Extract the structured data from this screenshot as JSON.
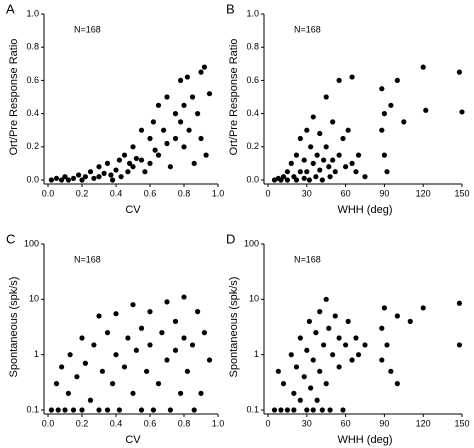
{
  "chart_data": [
    {
      "type": "scatter",
      "panel": "A",
      "annotation": "N=168",
      "xlabel": "CV",
      "ylabel": "Ort/Pre Response Ratio",
      "color": "#000000",
      "log_y": false,
      "xlim": [
        0,
        1
      ],
      "xticks": [
        {
          "value": 0,
          "label": "0.0"
        },
        0.2,
        0.4,
        0.6,
        0.8,
        {
          "value": 1,
          "label": "1.0"
        }
      ],
      "ylim": [
        0,
        1
      ],
      "yticks": [
        {
          "value": 0,
          "label": "0.0"
        },
        0.2,
        0.4,
        0.6,
        0.8,
        {
          "value": 1,
          "label": "1.0"
        }
      ],
      "x": [
        0.02,
        0.05,
        0.08,
        0.1,
        0.12,
        0.15,
        0.18,
        0.2,
        0.22,
        0.25,
        0.27,
        0.3,
        0.3,
        0.33,
        0.35,
        0.37,
        0.38,
        0.4,
        0.42,
        0.43,
        0.45,
        0.47,
        0.48,
        0.5,
        0.5,
        0.52,
        0.55,
        0.55,
        0.57,
        0.6,
        0.6,
        0.62,
        0.63,
        0.65,
        0.65,
        0.68,
        0.7,
        0.7,
        0.72,
        0.75,
        0.75,
        0.78,
        0.78,
        0.8,
        0.8,
        0.82,
        0.83,
        0.85,
        0.86,
        0.88,
        0.9,
        0.9,
        0.92,
        0.93,
        0.95
      ],
      "values": [
        0,
        0.01,
        0,
        0.02,
        0,
        0.01,
        0.03,
        0,
        0.02,
        0.05,
        0.01,
        0.08,
        0.02,
        0.04,
        0.1,
        0.03,
        0,
        0.06,
        0.12,
        0.02,
        0.15,
        0.05,
        0.1,
        0.2,
        0.08,
        0.13,
        0.3,
        0.12,
        0.05,
        0.25,
        0.1,
        0.35,
        0.18,
        0.45,
        0.15,
        0.3,
        0.5,
        0.22,
        0.08,
        0.4,
        0.25,
        0.6,
        0.35,
        0.45,
        0.2,
        0.62,
        0.3,
        0.5,
        0.1,
        0.4,
        0.65,
        0.25,
        0.68,
        0.15,
        0.52
      ]
    },
    {
      "type": "scatter",
      "panel": "B",
      "annotation": "N=168",
      "xlabel": "WHH (deg)",
      "ylabel": "Ort/Pre Response Ratio",
      "color": "#000000",
      "log_y": false,
      "xlim": [
        0,
        150
      ],
      "xticks": [
        0,
        30,
        60,
        90,
        120,
        150
      ],
      "ylim": [
        0,
        1
      ],
      "yticks": [
        {
          "value": 0,
          "label": "0.0"
        },
        0.2,
        0.4,
        0.6,
        0.8,
        {
          "value": 1,
          "label": "1.0"
        }
      ],
      "x": [
        5,
        8,
        10,
        12,
        15,
        15,
        18,
        20,
        22,
        22,
        25,
        25,
        28,
        28,
        30,
        30,
        32,
        33,
        35,
        35,
        37,
        38,
        40,
        40,
        42,
        43,
        45,
        45,
        47,
        48,
        50,
        50,
        52,
        55,
        55,
        58,
        60,
        62,
        65,
        65,
        68,
        70,
        75,
        88,
        88,
        90,
        90,
        92,
        95,
        100,
        105,
        120,
        122,
        148,
        150
      ],
      "values": [
        0,
        0.01,
        0,
        0.02,
        0.05,
        0,
        0.1,
        0.02,
        0,
        0.15,
        0.05,
        0.25,
        0.01,
        0.12,
        0.3,
        0.05,
        0,
        0.2,
        0.1,
        0.38,
        0.02,
        0.15,
        0.28,
        0.06,
        0,
        0.12,
        0.5,
        0.2,
        0.08,
        0.02,
        0.35,
        0.12,
        0.05,
        0.6,
        0.15,
        0.25,
        0.08,
        0.3,
        0.62,
        0.1,
        0.05,
        0.15,
        0.02,
        0.55,
        0.3,
        0.15,
        0.4,
        0.05,
        0.45,
        0.6,
        0.35,
        0.68,
        0.42,
        0.65,
        0.41
      ]
    },
    {
      "type": "scatter",
      "panel": "C",
      "annotation": "N=168",
      "xlabel": "CV",
      "ylabel": "Spontaneous (spk/s)",
      "color": "#000000",
      "log_y": true,
      "xlim": [
        0,
        1
      ],
      "xticks": [
        {
          "value": 0,
          "label": "0.0"
        },
        0.2,
        0.4,
        0.6,
        0.8,
        {
          "value": 1,
          "label": "1.0"
        }
      ],
      "ylim": [
        0.1,
        100
      ],
      "yticks": [
        0.1,
        1,
        10,
        100
      ],
      "x": [
        0.02,
        0.05,
        0.06,
        0.08,
        0.1,
        0.12,
        0.13,
        0.15,
        0.17,
        0.2,
        0.2,
        0.22,
        0.25,
        0.27,
        0.3,
        0.3,
        0.32,
        0.35,
        0.35,
        0.38,
        0.4,
        0.4,
        0.42,
        0.45,
        0.47,
        0.5,
        0.5,
        0.52,
        0.55,
        0.55,
        0.58,
        0.6,
        0.6,
        0.62,
        0.65,
        0.67,
        0.7,
        0.7,
        0.72,
        0.75,
        0.75,
        0.78,
        0.8,
        0.8,
        0.82,
        0.85,
        0.86,
        0.88,
        0.9,
        0.92,
        0.95
      ],
      "values": [
        0.1,
        0.3,
        0.1,
        0.6,
        0.1,
        0.2,
        1,
        0.1,
        0.4,
        2,
        0.1,
        0.7,
        0.15,
        1.5,
        0.1,
        5,
        0.5,
        2.5,
        0.1,
        0.3,
        5.5,
        1,
        0.1,
        0.6,
        2,
        8,
        0.2,
        1.2,
        0.1,
        3,
        0.5,
        6,
        1.5,
        0.1,
        0.3,
        2.5,
        9,
        0.8,
        0.1,
        4,
        1.2,
        0.2,
        11,
        2,
        0.5,
        1.5,
        0.1,
        6,
        0.2,
        2.5,
        0.8
      ]
    },
    {
      "type": "scatter",
      "panel": "D",
      "annotation": "N=168",
      "xlabel": "WHH (deg)",
      "ylabel": "Spontaneous (spk/s)",
      "color": "#000000",
      "log_y": true,
      "xlim": [
        0,
        150
      ],
      "xticks": [
        0,
        30,
        60,
        90,
        120,
        150
      ],
      "ylim": [
        0.1,
        100
      ],
      "yticks": [
        0.1,
        1,
        10,
        100
      ],
      "x": [
        5,
        8,
        10,
        12,
        15,
        18,
        20,
        20,
        22,
        25,
        25,
        28,
        30,
        30,
        32,
        33,
        35,
        35,
        37,
        38,
        40,
        40,
        42,
        43,
        45,
        45,
        47,
        48,
        50,
        52,
        55,
        55,
        58,
        60,
        62,
        65,
        68,
        70,
        75,
        88,
        88,
        90,
        92,
        95,
        100,
        100,
        110,
        120,
        148,
        148
      ],
      "values": [
        0.1,
        0.5,
        0.1,
        0.3,
        0.1,
        1,
        0.2,
        0.1,
        0.6,
        2,
        0.15,
        0.4,
        1.2,
        0.1,
        4,
        0.25,
        0.8,
        0.1,
        2.5,
        0.15,
        6,
        0.5,
        0.1,
        1.5,
        10,
        0.3,
        3,
        0.1,
        1,
        5,
        0.6,
        2,
        0.1,
        1.5,
        4,
        0.8,
        2,
        1,
        1.5,
        3,
        0.8,
        7,
        1.5,
        0.5,
        5,
        0.3,
        4,
        7,
        8.5,
        1.5
      ]
    }
  ]
}
